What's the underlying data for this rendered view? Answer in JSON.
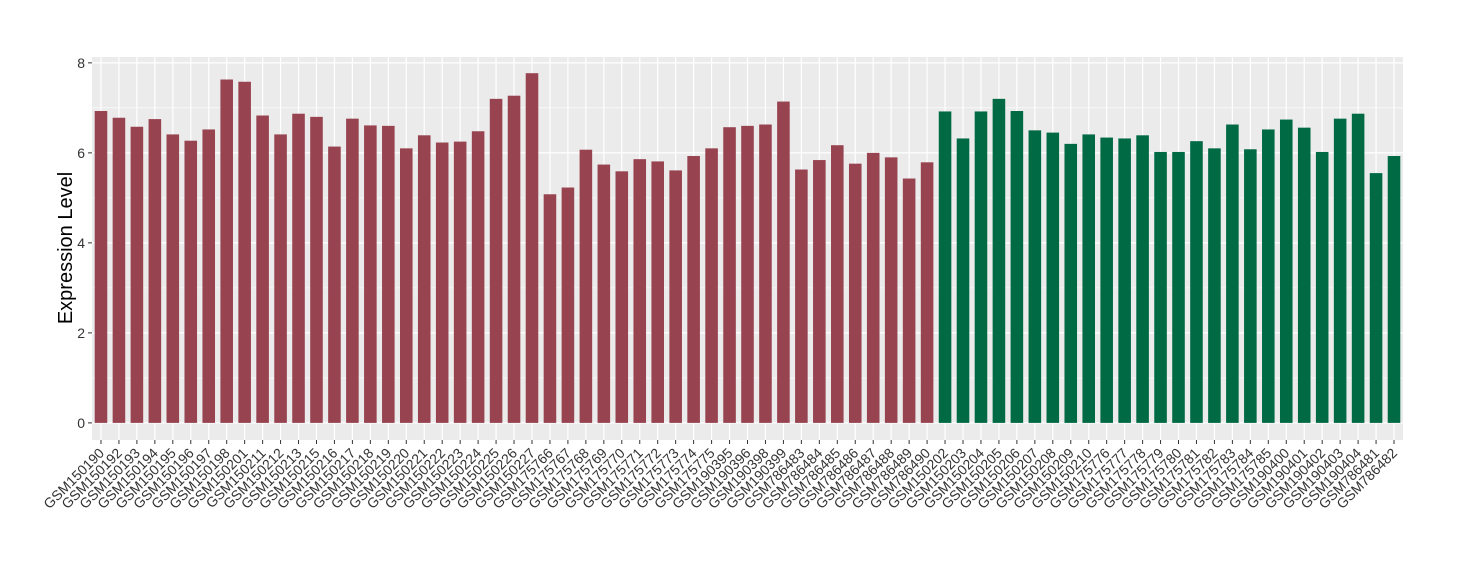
{
  "chart_data": {
    "type": "bar",
    "y_label": "Expression Level",
    "categories": [
      "GSM150190",
      "GSM150192",
      "GSM150193",
      "GSM150194",
      "GSM150195",
      "GSM150196",
      "GSM150197",
      "GSM150198",
      "GSM150201",
      "GSM150211",
      "GSM150212",
      "GSM150213",
      "GSM150215",
      "GSM150216",
      "GSM150217",
      "GSM150218",
      "GSM150219",
      "GSM150220",
      "GSM150221",
      "GSM150222",
      "GSM150223",
      "GSM150224",
      "GSM150225",
      "GSM150226",
      "GSM150227",
      "GSM175766",
      "GSM175767",
      "GSM175768",
      "GSM175769",
      "GSM175770",
      "GSM175771",
      "GSM175772",
      "GSM175773",
      "GSM175774",
      "GSM175775",
      "GSM190395",
      "GSM190396",
      "GSM190398",
      "GSM190399",
      "GSM786483",
      "GSM786484",
      "GSM786485",
      "GSM786486",
      "GSM786487",
      "GSM786488",
      "GSM786489",
      "GSM786490",
      "GSM150202",
      "GSM150203",
      "GSM150204",
      "GSM150205",
      "GSM150206",
      "GSM150207",
      "GSM150208",
      "GSM150209",
      "GSM150210",
      "GSM175776",
      "GSM175777",
      "GSM175778",
      "GSM175779",
      "GSM175780",
      "GSM175781",
      "GSM175782",
      "GSM175783",
      "GSM175784",
      "GSM175785",
      "GSM190400",
      "GSM190401",
      "GSM190402",
      "GSM190403",
      "GSM190404",
      "GSM786481",
      "GSM786482"
    ],
    "values": [
      6.93,
      6.78,
      6.58,
      6.75,
      6.41,
      6.27,
      6.52,
      7.63,
      7.58,
      6.83,
      6.41,
      6.87,
      6.8,
      6.14,
      6.76,
      6.61,
      6.6,
      6.1,
      6.39,
      6.23,
      6.25,
      6.48,
      7.2,
      7.27,
      7.77,
      5.08,
      5.23,
      6.07,
      5.74,
      5.59,
      5.86,
      5.81,
      5.61,
      5.93,
      6.1,
      6.57,
      6.6,
      6.63,
      7.14,
      5.63,
      5.84,
      6.17,
      5.76,
      6.0,
      5.9,
      5.43,
      5.79,
      6.92,
      6.32,
      6.92,
      7.2,
      6.93,
      6.5,
      6.45,
      6.2,
      6.41,
      6.34,
      6.32,
      6.39,
      6.02,
      6.02,
      6.26,
      6.1,
      6.63,
      6.08,
      6.52,
      6.74,
      6.56,
      6.02,
      6.76,
      6.87,
      5.55,
      5.93
    ],
    "colors": [
      "#974350",
      "#974350",
      "#974350",
      "#974350",
      "#974350",
      "#974350",
      "#974350",
      "#974350",
      "#974350",
      "#974350",
      "#974350",
      "#974350",
      "#974350",
      "#974350",
      "#974350",
      "#974350",
      "#974350",
      "#974350",
      "#974350",
      "#974350",
      "#974350",
      "#974350",
      "#974350",
      "#974350",
      "#974350",
      "#974350",
      "#974350",
      "#974350",
      "#974350",
      "#974350",
      "#974350",
      "#974350",
      "#974350",
      "#974350",
      "#974350",
      "#974350",
      "#974350",
      "#974350",
      "#974350",
      "#974350",
      "#974350",
      "#974350",
      "#974350",
      "#974350",
      "#974350",
      "#974350",
      "#974350",
      "#006a45",
      "#006a45",
      "#006a45",
      "#006a45",
      "#006a45",
      "#006a45",
      "#006a45",
      "#006a45",
      "#006a45",
      "#006a45",
      "#006a45",
      "#006a45",
      "#006a45",
      "#006a45",
      "#006a45",
      "#006a45",
      "#006a45",
      "#006a45",
      "#006a45",
      "#006a45",
      "#006a45",
      "#006a45",
      "#006a45",
      "#006a45",
      "#006a45",
      "#006a45"
    ],
    "ylim": [
      -0.38,
      8.13
    ],
    "yticks": [
      0,
      2,
      4,
      6,
      8
    ],
    "grid": true
  }
}
